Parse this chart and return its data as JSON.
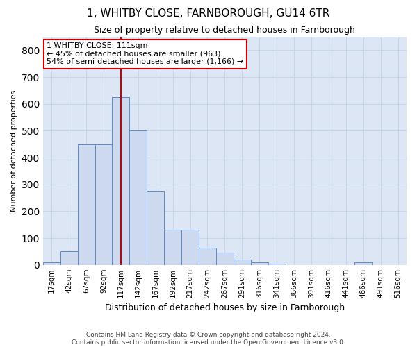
{
  "title": "1, WHITBY CLOSE, FARNBOROUGH, GU14 6TR",
  "subtitle": "Size of property relative to detached houses in Farnborough",
  "xlabel": "Distribution of detached houses by size in Farnborough",
  "ylabel": "Number of detached properties",
  "bar_values": [
    10,
    50,
    450,
    450,
    625,
    500,
    275,
    130,
    130,
    65,
    45,
    20,
    10,
    5,
    0,
    0,
    0,
    0,
    10,
    0,
    0
  ],
  "bar_labels": [
    "17sqm",
    "42sqm",
    "67sqm",
    "92sqm",
    "117sqm",
    "142sqm",
    "167sqm",
    "192sqm",
    "217sqm",
    "242sqm",
    "267sqm",
    "291sqm",
    "316sqm",
    "341sqm",
    "366sqm",
    "391sqm",
    "416sqm",
    "441sqm",
    "466sqm",
    "491sqm",
    "516sqm"
  ],
  "bar_color": "#ccd9ee",
  "bar_edge_color": "#5b8ac5",
  "vline_x": 4,
  "vline_color": "#cc0000",
  "annotation_title": "1 WHITBY CLOSE: 111sqm",
  "annotation_line1": "← 45% of detached houses are smaller (963)",
  "annotation_line2": "54% of semi-detached houses are larger (1,166) →",
  "annotation_box_facecolor": "#ffffff",
  "annotation_box_edgecolor": "#cc0000",
  "ylim": [
    0,
    850
  ],
  "yticks": [
    0,
    100,
    200,
    300,
    400,
    500,
    600,
    700,
    800
  ],
  "grid_color": "#c8d4e8",
  "background_color": "#dde6f5",
  "footer_line1": "Contains HM Land Registry data © Crown copyright and database right 2024.",
  "footer_line2": "Contains public sector information licensed under the Open Government Licence v3.0."
}
